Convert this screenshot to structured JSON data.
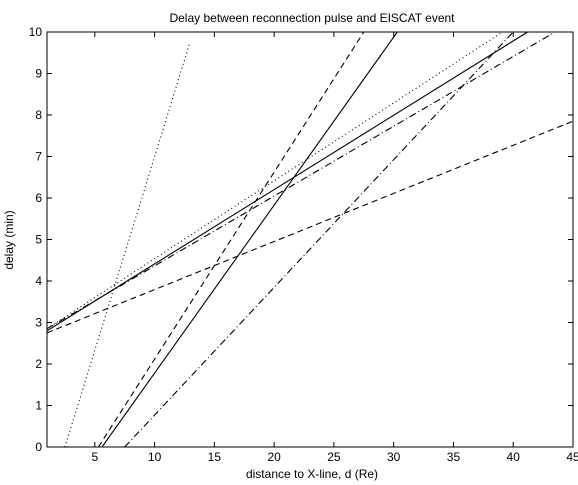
{
  "chart_data": {
    "type": "line",
    "title": "Delay between reconnection pulse and EISCAT event",
    "xlabel": "distance to X-line, d (Re)",
    "ylabel": "delay (min)",
    "xlim": [
      1,
      45
    ],
    "ylim": [
      0,
      10
    ],
    "xticks": [
      5,
      10,
      15,
      20,
      25,
      30,
      35,
      40,
      45
    ],
    "yticks": [
      0,
      1,
      2,
      3,
      4,
      5,
      6,
      7,
      8,
      9,
      10
    ],
    "grid": false,
    "legend": "none",
    "line_color": "#000000",
    "series": [
      {
        "style": "dotted",
        "x": [
          2.5,
          12.9
        ],
        "y": [
          0,
          9.7
        ]
      },
      {
        "style": "dashed",
        "x": [
          5.3,
          27.5
        ],
        "y": [
          0,
          10
        ]
      },
      {
        "style": "solid",
        "x": [
          5.6,
          30.3
        ],
        "y": [
          0,
          10
        ]
      },
      {
        "style": "dashdot",
        "x": [
          7.5,
          40.0
        ],
        "y": [
          0,
          10
        ]
      },
      {
        "style": "dotted",
        "x": [
          1,
          39.1
        ],
        "y": [
          2.85,
          10
        ]
      },
      {
        "style": "solid",
        "x": [
          1,
          41.2
        ],
        "y": [
          2.8,
          10
        ]
      },
      {
        "style": "dashdot",
        "x": [
          1,
          43.5
        ],
        "y": [
          2.85,
          10
        ]
      },
      {
        "style": "dashed",
        "x": [
          1,
          45
        ],
        "y": [
          2.75,
          7.85
        ]
      }
    ]
  }
}
